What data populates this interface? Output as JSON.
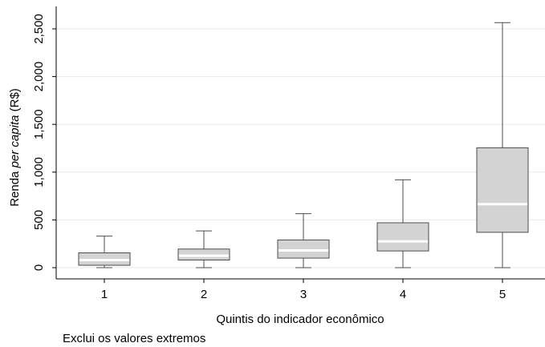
{
  "chart_data": {
    "type": "box",
    "xlabel": "Quintis do indicador econômico",
    "ylabel_parts": [
      "Renda ",
      "per capita",
      " (R$)"
    ],
    "ylim": [
      -80,
      2700
    ],
    "yticks": [
      0,
      500,
      1000,
      1500,
      2000,
      2500
    ],
    "ytick_labels": [
      "0",
      "500",
      "1,000",
      "1,500",
      "2,000",
      "2,500"
    ],
    "categories": [
      "1",
      "2",
      "3",
      "4",
      "5"
    ],
    "boxes": [
      {
        "category": "1",
        "whisker_low": 0,
        "q1": 25,
        "median": 80,
        "q3": 155,
        "whisker_high": 330
      },
      {
        "category": "2",
        "whisker_low": 0,
        "q1": 80,
        "median": 125,
        "q3": 195,
        "whisker_high": 385
      },
      {
        "category": "3",
        "whisker_low": 0,
        "q1": 100,
        "median": 180,
        "q3": 290,
        "whisker_high": 565
      },
      {
        "category": "4",
        "whisker_low": 0,
        "q1": 175,
        "median": 275,
        "q3": 470,
        "whisker_high": 920
      },
      {
        "category": "5",
        "whisker_low": 0,
        "q1": 370,
        "median": 665,
        "q3": 1255,
        "whisker_high": 2565
      }
    ],
    "grid": true,
    "colors": {
      "box_fill": "#d3d3d3",
      "box_stroke": "#4d4d4d",
      "median": "#ffffff",
      "grid": "#e8e8e8"
    }
  },
  "note": "Exclui os valores extremos"
}
